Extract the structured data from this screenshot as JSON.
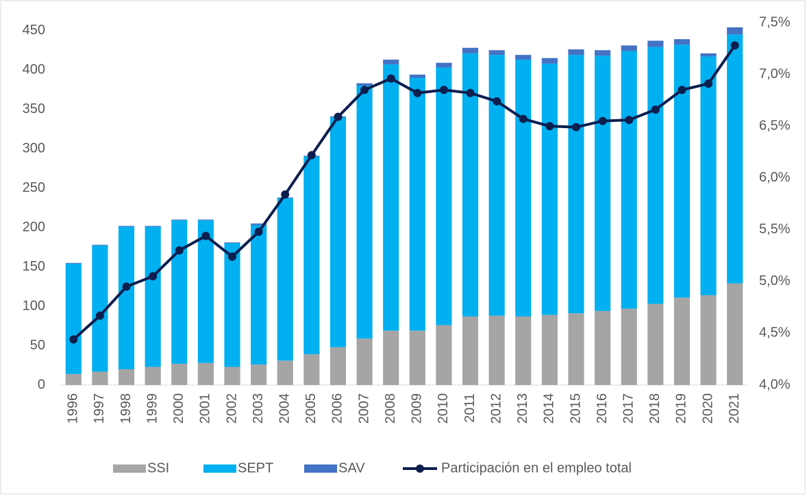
{
  "chart_data": {
    "type": "bar",
    "categories": [
      "1996",
      "1997",
      "1998",
      "1999",
      "2000",
      "2001",
      "2002",
      "2003",
      "2004",
      "2005",
      "2006",
      "2007",
      "2008",
      "2009",
      "2010",
      "2011",
      "2012",
      "2013",
      "2014",
      "2015",
      "2016",
      "2017",
      "2018",
      "2019",
      "2020",
      "2021"
    ],
    "stacked": true,
    "series": [
      {
        "name": "SSI",
        "color": "#a5a5a5",
        "values": [
          14,
          17,
          20,
          23,
          27,
          28,
          23,
          26,
          31,
          39,
          48,
          59,
          69,
          69,
          76,
          87,
          88,
          87,
          89,
          91,
          94,
          97,
          103,
          111,
          114,
          129
        ]
      },
      {
        "name": "SEPT",
        "color": "#00b0f0",
        "values": [
          140,
          160,
          181,
          178,
          182,
          181,
          157,
          177,
          206,
          251,
          292,
          321,
          338,
          321,
          327,
          334,
          331,
          326,
          319,
          328,
          324,
          327,
          326,
          321,
          303,
          316
        ]
      },
      {
        "name": "SAV",
        "color": "#4472c4",
        "values": [
          1,
          1,
          1,
          1,
          1,
          1,
          1,
          2,
          1,
          1,
          1,
          3,
          6,
          4,
          6,
          7,
          6,
          6,
          7,
          7,
          7,
          7,
          8,
          7,
          4,
          9
        ]
      },
      {
        "name": "Participación en el empleo total",
        "color": "#0d1f4f",
        "type": "line",
        "axis": "y2",
        "values": [
          4.44,
          4.67,
          4.95,
          5.05,
          5.3,
          5.44,
          5.24,
          5.48,
          5.84,
          6.22,
          6.59,
          6.85,
          6.96,
          6.82,
          6.85,
          6.82,
          6.74,
          6.57,
          6.5,
          6.49,
          6.55,
          6.56,
          6.66,
          6.85,
          6.91,
          7.28
        ]
      }
    ],
    "ylim": [
      0,
      460
    ],
    "yticks": [
      0,
      50,
      100,
      150,
      200,
      250,
      300,
      350,
      400,
      450
    ],
    "y2lim": [
      4.0,
      7.5
    ],
    "y2ticks": [
      {
        "value": 4.0,
        "label": "4,0%"
      },
      {
        "value": 4.5,
        "label": "4,5%"
      },
      {
        "value": 5.0,
        "label": "5,0%"
      },
      {
        "value": 5.5,
        "label": "5,5%"
      },
      {
        "value": 6.0,
        "label": "6,0%"
      },
      {
        "value": 6.5,
        "label": "6,5%"
      },
      {
        "value": 7.0,
        "label": "7,0%"
      },
      {
        "value": 7.5,
        "label": "7,5%"
      }
    ],
    "legend": "bottom"
  }
}
